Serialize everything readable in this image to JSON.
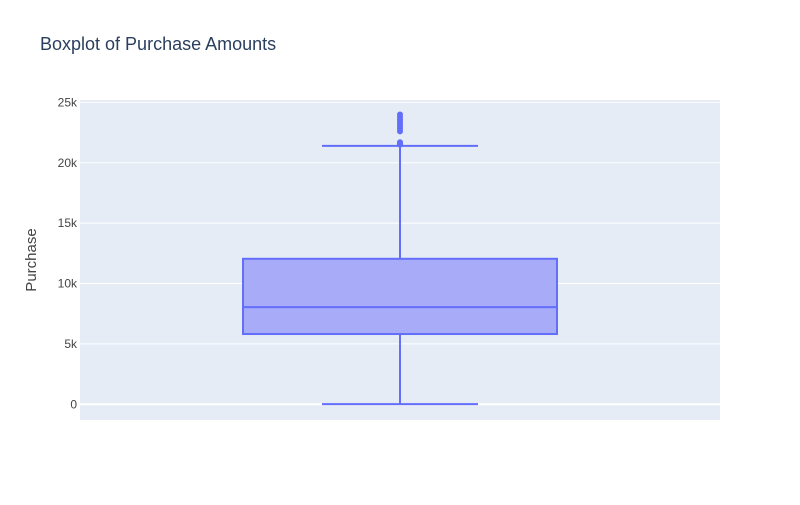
{
  "chart_data": {
    "type": "box",
    "title": "Boxplot of Purchase Amounts",
    "xlabel": "",
    "ylabel": "Purchase",
    "ylim": [
      -1300,
      25200
    ],
    "yticks": [
      {
        "value": 0,
        "label": "0"
      },
      {
        "value": 5000,
        "label": "5k"
      },
      {
        "value": 10000,
        "label": "10k"
      },
      {
        "value": 15000,
        "label": "15k"
      },
      {
        "value": 20000,
        "label": "20k"
      },
      {
        "value": 25000,
        "label": "25k"
      }
    ],
    "grid": true,
    "box": {
      "min": 12,
      "q1": 5820,
      "median": 8050,
      "q3": 12050,
      "upper_fence": 21400,
      "outliers": [
        21500,
        21550,
        21600,
        21650,
        21700,
        22600,
        22800,
        23000,
        23200,
        23400,
        23600,
        23800,
        24000
      ]
    },
    "colors": {
      "box_line": "#636efa",
      "box_fill": "#a3a8f8",
      "plot_background": "#e5ecf6",
      "grid": "#ffffff",
      "axis_text": "#444444",
      "title_text": "#2a3f5f"
    }
  }
}
